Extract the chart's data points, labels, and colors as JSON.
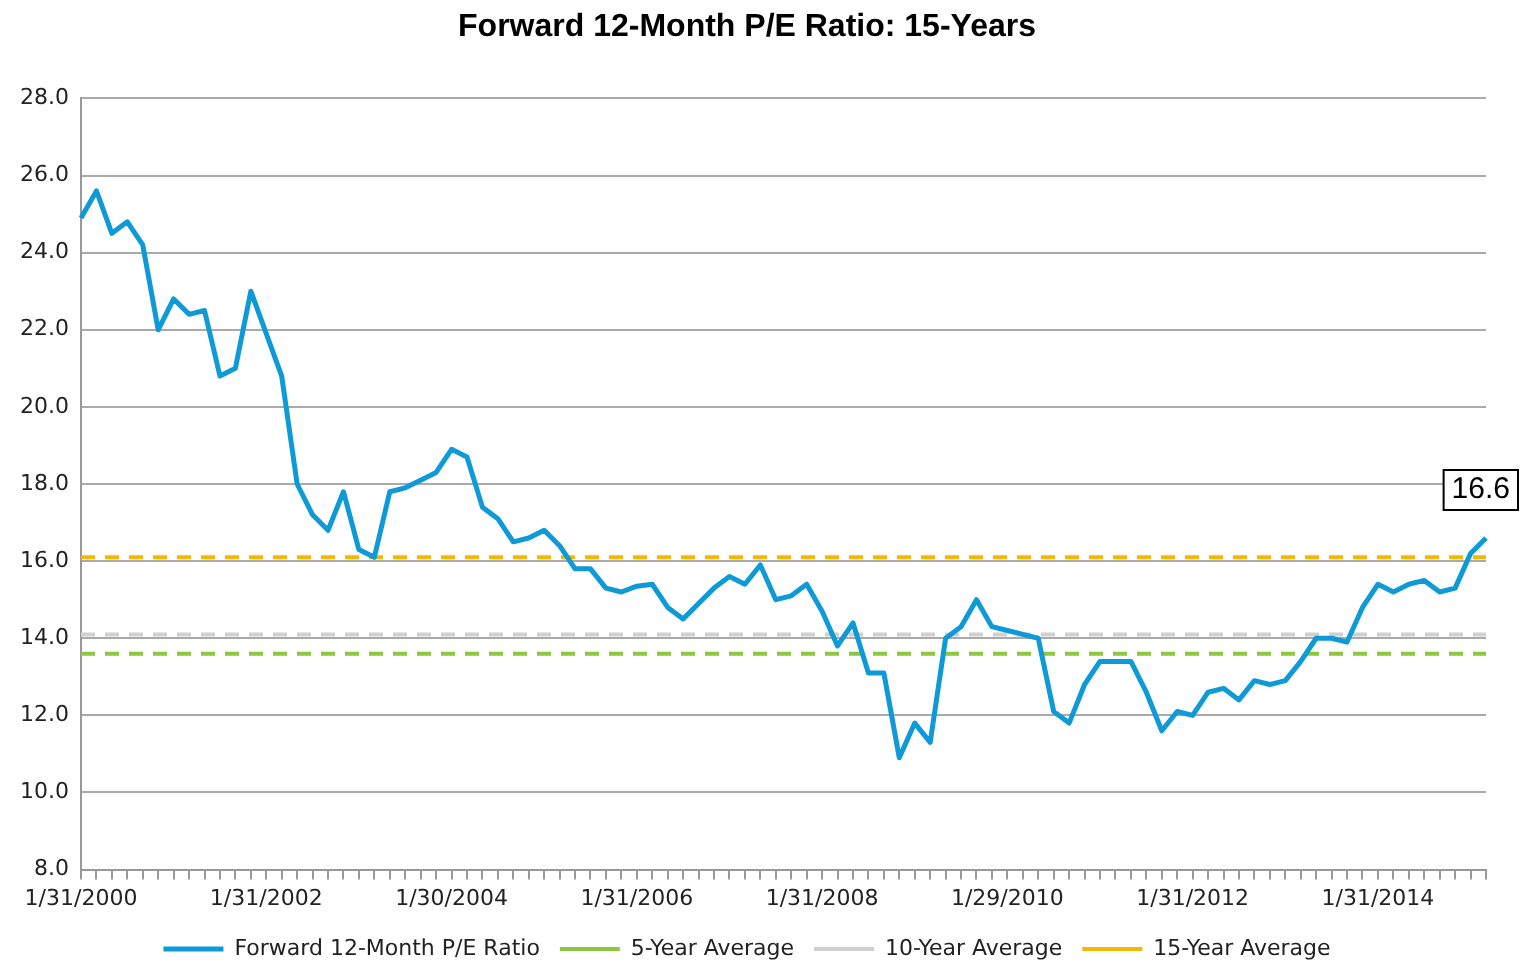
{
  "chart_data": {
    "type": "line",
    "title": "Forward 12-Month P/E Ratio: 15-Years",
    "categories": [
      "1/31/2000",
      null,
      null,
      null,
      null,
      null,
      null,
      null,
      null,
      null,
      null,
      null,
      "1/31/2002",
      null,
      null,
      null,
      null,
      null,
      null,
      null,
      null,
      null,
      null,
      null,
      "1/30/2004",
      null,
      null,
      null,
      null,
      null,
      null,
      null,
      null,
      null,
      null,
      null,
      "1/31/2006",
      null,
      null,
      null,
      null,
      null,
      null,
      null,
      null,
      null,
      null,
      null,
      "1/31/2008",
      null,
      null,
      null,
      null,
      null,
      null,
      null,
      null,
      null,
      null,
      null,
      "1/29/2010",
      null,
      null,
      null,
      null,
      null,
      null,
      null,
      null,
      null,
      null,
      null,
      "1/31/2012",
      null,
      null,
      null,
      null,
      null,
      null,
      null,
      null,
      null,
      null,
      null,
      "1/31/2014",
      null,
      null,
      null,
      null,
      null,
      null,
      null
    ],
    "series": [
      {
        "name": "Forward 12-Month P/E Ratio",
        "color": "#0d9ad6",
        "values": [
          24.9,
          25.6,
          24.5,
          24.8,
          24.2,
          22.0,
          22.8,
          22.4,
          22.5,
          20.8,
          21.0,
          23.0,
          21.9,
          20.8,
          18.0,
          17.2,
          16.8,
          17.8,
          16.3,
          16.1,
          17.8,
          17.9,
          18.1,
          18.3,
          18.9,
          18.7,
          17.4,
          17.1,
          16.5,
          16.6,
          16.8,
          16.4,
          15.8,
          15.8,
          15.3,
          15.2,
          15.35,
          15.4,
          14.8,
          14.5,
          14.9,
          15.3,
          15.6,
          15.4,
          15.9,
          15.0,
          15.1,
          15.4,
          14.7,
          13.8,
          14.4,
          13.1,
          13.1,
          10.9,
          11.8,
          11.3,
          14.0,
          14.3,
          15.0,
          14.3,
          14.2,
          14.1,
          14.0,
          12.1,
          11.8,
          12.8,
          13.4,
          13.4,
          13.4,
          12.6,
          11.6,
          12.1,
          12.0,
          12.6,
          12.7,
          12.4,
          12.9,
          12.8,
          12.9,
          13.4,
          14.0,
          14.0,
          13.9,
          14.8,
          15.4,
          15.2,
          15.4,
          15.5,
          15.2,
          15.3,
          16.2,
          16.6
        ],
        "value_labels": [
          null,
          null,
          null,
          null,
          null,
          null,
          null,
          null,
          null,
          null,
          null,
          null,
          null,
          null,
          null,
          null,
          null,
          null,
          null,
          null,
          null,
          null,
          null,
          null,
          null,
          null,
          null,
          null,
          null,
          null,
          null,
          null,
          null,
          null,
          null,
          null,
          null,
          null,
          null,
          null,
          null,
          null,
          null,
          null,
          null,
          null,
          null,
          null,
          null,
          null,
          null,
          null,
          null,
          null,
          null,
          null,
          null,
          null,
          null,
          null,
          null,
          null,
          null,
          null,
          null,
          null,
          null,
          null,
          null,
          null,
          null,
          null,
          null,
          null,
          null,
          null,
          null,
          null,
          null,
          null,
          null,
          null,
          null,
          null,
          null,
          null,
          null,
          null,
          null,
          null,
          null,
          "16.6"
        ]
      }
    ],
    "ref_lines": [
      {
        "axis": "y",
        "value": 13.6,
        "label": "5-Year Average",
        "color": "#8dc63f",
        "line_style": "dashed"
      },
      {
        "axis": "y",
        "value": 14.1,
        "label": "10-Year Average",
        "color": "#d0d0d0",
        "line_style": "dashed"
      },
      {
        "axis": "y",
        "value": 16.1,
        "label": "15-Year Average",
        "color": "#f5b800",
        "line_style": "dashed"
      }
    ],
    "ylim": [
      8,
      28
    ],
    "yticks": [
      {
        "value": 8,
        "label": "8.0"
      },
      {
        "value": 10,
        "label": "10.0"
      },
      {
        "value": 12,
        "label": "12.0"
      },
      {
        "value": 14,
        "label": "14.0"
      },
      {
        "value": 16,
        "label": "16.0"
      },
      {
        "value": 18,
        "label": "18.0"
      },
      {
        "value": 20,
        "label": "20.0"
      },
      {
        "value": 22,
        "label": "22.0"
      },
      {
        "value": 24,
        "label": "24.0"
      },
      {
        "value": 26,
        "label": "26.0"
      },
      {
        "value": 28,
        "label": "28.0"
      }
    ],
    "grid": "y",
    "legend": "bottom",
    "marker": "none",
    "line_style": "solid"
  }
}
